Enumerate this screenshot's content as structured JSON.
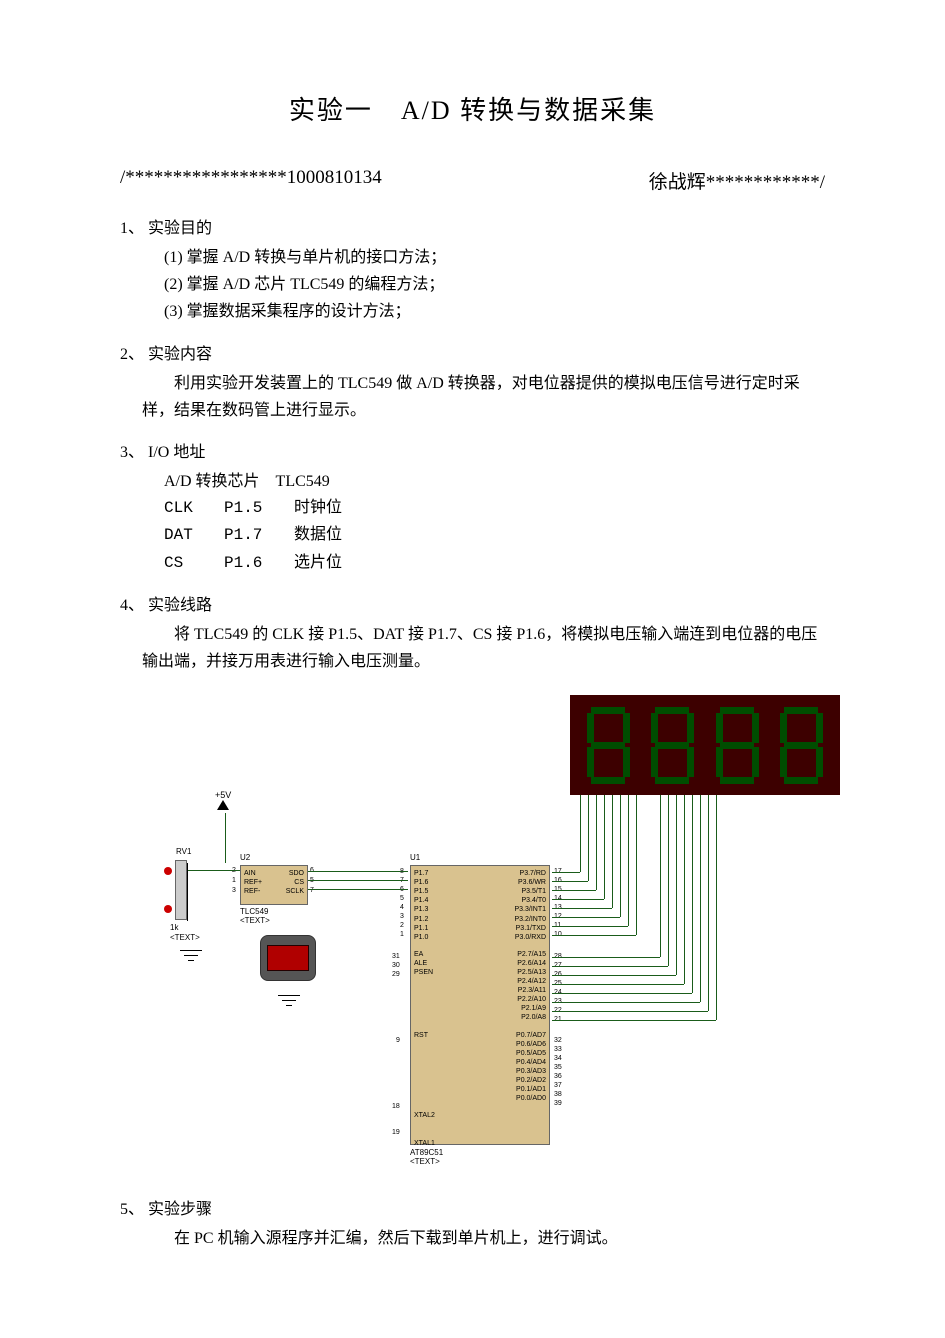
{
  "title": "实验一　A/D 转换与数据采集",
  "author_left": "/*****************1000810134",
  "author_right": "徐战辉************/",
  "s1": {
    "head": "1、 实验目的",
    "l1": "(1) 掌握 A/D 转换与单片机的接口方法；",
    "l2": "(2) 掌握 A/D 芯片 TLC549 的编程方法；",
    "l3": "(3) 掌握数据采集程序的设计方法；"
  },
  "s2": {
    "head": "2、 实验内容",
    "body": "利用实验开发装置上的 TLC549 做 A/D 转换器，对电位器提供的模拟电压信号进行定时采样，结果在数码管上进行显示。"
  },
  "s3": {
    "head": "3、 I/O 地址",
    "chip": "A/D 转换芯片　TLC549",
    "r1": {
      "a": "CLK",
      "b": "P1.5",
      "c": "时钟位"
    },
    "r2": {
      "a": "DAT",
      "b": "P1.7",
      "c": "数据位"
    },
    "r3": {
      "a": "CS",
      "b": "P1.6",
      "c": "选片位"
    }
  },
  "s4": {
    "head": "4、 实验线路",
    "body": "将 TLC549 的 CLK 接 P1.5、DAT 接 P1.7、CS 接 P1.6，将模拟电压输入端连到电位器的电压输出端，并接万用表进行输入电压测量。"
  },
  "s5": {
    "head": "5、 实验步骤",
    "body": "在 PC 机输入源程序并汇编，然后下载到单片机上，进行调试。"
  },
  "diagram": {
    "display_bg": "#3d0000",
    "segment_color": "#004d00",
    "chip_bg": "#d9c28f",
    "wire_color": "#1a5c1a",
    "battery_body": "#555555",
    "battery_cell": "#b00000",
    "vcc_label": "+5V",
    "pot_label": "RV1",
    "pot_value": "1k",
    "pot_text": "<TEXT>",
    "u1_label": "U1",
    "u2_label": "U2",
    "adc_part": "TLC549",
    "adc_text": "<TEXT>",
    "mcu_part": "AT89C51",
    "mcu_text": "<TEXT>",
    "adc_pins_left": [
      "AIN",
      "REF+",
      "REF-"
    ],
    "adc_pins_right": [
      "SDO",
      "CS",
      "SCLK"
    ],
    "adc_pinno_left": [
      "2",
      "1",
      "3"
    ],
    "adc_pinno_right": [
      "6",
      "5",
      "7"
    ],
    "mcu_left_top": [
      "P1.7",
      "P1.6",
      "P1.5",
      "P1.4",
      "P1.3",
      "P1.2",
      "P1.1",
      "P1.0"
    ],
    "mcu_left_top_no": [
      "8",
      "7",
      "6",
      "5",
      "4",
      "3",
      "2",
      "1"
    ],
    "mcu_left_mid": [
      "EA",
      "ALE",
      "PSEN"
    ],
    "mcu_left_mid_no": [
      "31",
      "30",
      "29"
    ],
    "mcu_left_rst": "RST",
    "mcu_left_rst_no": "9",
    "mcu_left_xtal2": "XTAL2",
    "mcu_left_xtal2_no": "18",
    "mcu_left_xtal1": "XTAL1",
    "mcu_left_xtal1_no": "19",
    "mcu_right_p3": [
      "P3.7/RD",
      "P3.6/WR",
      "P3.5/T1",
      "P3.4/T0",
      "P3.3/INT1",
      "P3.2/INT0",
      "P3.1/TXD",
      "P3.0/RXD"
    ],
    "mcu_right_p3_no": [
      "17",
      "16",
      "15",
      "14",
      "13",
      "12",
      "11",
      "10"
    ],
    "mcu_right_p2": [
      "P2.7/A15",
      "P2.6/A14",
      "P2.5/A13",
      "P2.4/A12",
      "P2.3/A11",
      "P2.2/A10",
      "P2.1/A9",
      "P2.0/A8"
    ],
    "mcu_right_p2_no": [
      "28",
      "27",
      "26",
      "25",
      "24",
      "23",
      "22",
      "21"
    ],
    "mcu_right_p0": [
      "P0.7/AD7",
      "P0.6/AD6",
      "P0.5/AD5",
      "P0.4/AD4",
      "P0.3/AD3",
      "P0.2/AD2",
      "P0.1/AD1",
      "P0.0/AD0"
    ],
    "mcu_right_p0_no": [
      "32",
      "33",
      "34",
      "35",
      "36",
      "37",
      "38",
      "39"
    ]
  }
}
